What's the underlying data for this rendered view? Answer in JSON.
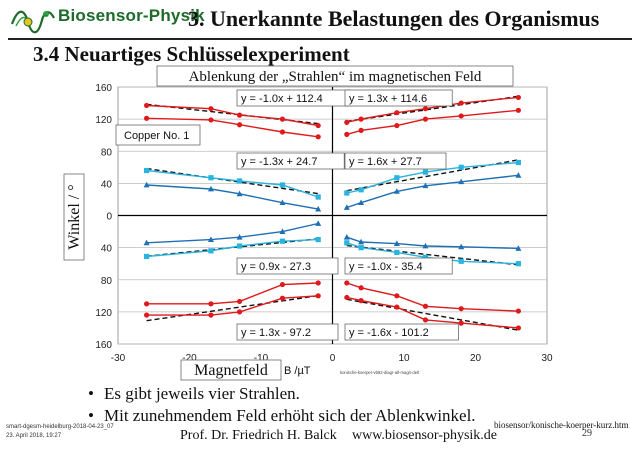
{
  "header": {
    "logo_text": "Biosensor-Physik",
    "title": "3. Unerkannte Belastungen des Organismus"
  },
  "section_title": "3.4 Neuartiges Schlüsselexperiment",
  "colors": {
    "red": "#e0191b",
    "blue": "#1f6fb5",
    "cyan": "#29b3df",
    "darkred": "#c0141a",
    "green": "#1c6b2a"
  },
  "chart_data": {
    "type": "scatter",
    "title": "Ablenkung der „Strahlen“ im magnetischen Feld",
    "xlabel": "Magnetfeld",
    "xunit": "B /µT",
    "ylabel": "Winkel / °",
    "xlim": [
      -30,
      30
    ],
    "ylim": [
      -160,
      160
    ],
    "xticks": [
      -30,
      -20,
      -10,
      0,
      10,
      20,
      30
    ],
    "xtick_labels": [
      "-30",
      "-20",
      "-10",
      "0",
      "10",
      "20",
      "30"
    ],
    "yticks": [
      160,
      120,
      80,
      40,
      0,
      -40,
      -80,
      -120,
      -160
    ],
    "ytick_labels": [
      "160",
      "120",
      "80",
      "40",
      "0",
      "40",
      "80",
      "120",
      "160"
    ],
    "grid": true,
    "sample_label": "Copper No. 1",
    "small_caption": "konische-koerper-vb92-diagr-alt-magn-delt",
    "series": [
      {
        "color": "red",
        "marker": "circle",
        "x": [
          -26,
          -17,
          -13,
          -7,
          -2
        ],
        "y": [
          137,
          133,
          125,
          120,
          112
        ]
      },
      {
        "color": "red",
        "marker": "circle",
        "x": [
          -26,
          -17,
          -13,
          -7,
          -2
        ],
        "y": [
          121,
          119,
          113,
          104,
          98
        ]
      },
      {
        "color": "cyan",
        "marker": "square",
        "x": [
          -26,
          -17,
          -13,
          -7,
          -2
        ],
        "y": [
          56,
          47,
          43,
          38,
          23
        ]
      },
      {
        "color": "blue",
        "marker": "triangle",
        "x": [
          -26,
          -17,
          -13,
          -7,
          -2
        ],
        "y": [
          38,
          33,
          27,
          16,
          8
        ]
      },
      {
        "color": "blue",
        "marker": "triangle",
        "x": [
          -26,
          -17,
          -13,
          -7,
          -2
        ],
        "y": [
          -34,
          -30,
          -27,
          -20,
          -10
        ]
      },
      {
        "color": "cyan",
        "marker": "square",
        "x": [
          -26,
          -17,
          -13,
          -7,
          -2
        ],
        "y": [
          -51,
          -44,
          -38,
          -32,
          -30
        ]
      },
      {
        "color": "red",
        "marker": "circle",
        "x": [
          -26,
          -17,
          -13,
          -7,
          -2
        ],
        "y": [
          -110,
          -110,
          -107,
          -86,
          -84
        ]
      },
      {
        "color": "red",
        "marker": "circle",
        "x": [
          -26,
          -17,
          -13,
          -7,
          -2
        ],
        "y": [
          -124,
          -124,
          -120,
          -103,
          -100
        ]
      },
      {
        "color": "red",
        "marker": "circle",
        "x": [
          2,
          4,
          9,
          13,
          18,
          26
        ],
        "y": [
          116,
          120,
          128,
          133,
          140,
          147
        ]
      },
      {
        "color": "red",
        "marker": "circle",
        "x": [
          2,
          4,
          9,
          13,
          18,
          26
        ],
        "y": [
          101,
          106,
          112,
          120,
          124,
          131
        ]
      },
      {
        "color": "cyan",
        "marker": "square",
        "x": [
          2,
          4,
          9,
          13,
          18,
          26
        ],
        "y": [
          28,
          32,
          47,
          54,
          60,
          66
        ]
      },
      {
        "color": "blue",
        "marker": "triangle",
        "x": [
          2,
          4,
          9,
          13,
          18,
          26
        ],
        "y": [
          10,
          16,
          30,
          37,
          42,
          50
        ]
      },
      {
        "color": "blue",
        "marker": "triangle",
        "x": [
          2,
          4,
          9,
          13,
          18,
          26
        ],
        "y": [
          -27,
          -33,
          -35,
          -38,
          -39,
          -41
        ]
      },
      {
        "color": "cyan",
        "marker": "square",
        "x": [
          2,
          4,
          9,
          13,
          18,
          26
        ],
        "y": [
          -34,
          -40,
          -46,
          -52,
          -57,
          -60
        ]
      },
      {
        "color": "red",
        "marker": "circle",
        "x": [
          2,
          4,
          9,
          13,
          18,
          26
        ],
        "y": [
          -84,
          -90,
          -100,
          -113,
          -116,
          -119
        ]
      },
      {
        "color": "red",
        "marker": "circle",
        "x": [
          2,
          4,
          9,
          13,
          18,
          26
        ],
        "y": [
          -102,
          -106,
          -114,
          -130,
          -134,
          -140
        ]
      }
    ],
    "trendlines": [
      {
        "label": "y = -1.0x + 112.4",
        "m": -1.0,
        "b": 112.4,
        "x": [
          -26,
          -2
        ]
      },
      {
        "label": "y = -1.3x + 24.7",
        "m": -1.3,
        "b": 24.7,
        "x": [
          -26,
          -2
        ]
      },
      {
        "label": "y = 0.9x - 27.3",
        "m": 0.9,
        "b": -27.3,
        "x": [
          -26,
          -2
        ]
      },
      {
        "label": "y = 1.3x - 97.2",
        "m": 1.3,
        "b": -97.2,
        "x": [
          -26,
          -2
        ]
      },
      {
        "label": "y = 1.3x + 114.6",
        "m": 1.3,
        "b": 114.6,
        "x": [
          2,
          26
        ]
      },
      {
        "label": "y = 1.6x + 27.7",
        "m": 1.6,
        "b": 27.7,
        "x": [
          2,
          26
        ]
      },
      {
        "label": "y = -1.0x - 35.4",
        "m": -1.0,
        "b": -35.4,
        "x": [
          2,
          26
        ]
      },
      {
        "label": "y = -1.6x - 101.2",
        "m": -1.6,
        "b": -101.2,
        "x": [
          2,
          26
        ]
      }
    ]
  },
  "bullets": [
    "Es gibt jeweils vier Strahlen.",
    "Mit zunehmendem Feld erhöht sich der Ablenkwinkel."
  ],
  "footer": {
    "meta_line1": "smart-dgesm-heidelburg-2018-04-23_07",
    "meta_line2": "23. April 2018, 19:27",
    "author": "Prof. Dr. Friedrich H. Balck",
    "website": "www.biosensor-physik.de",
    "file_ref": "biosensor/konische-koerper-kurz.htm",
    "page_number": "29"
  }
}
